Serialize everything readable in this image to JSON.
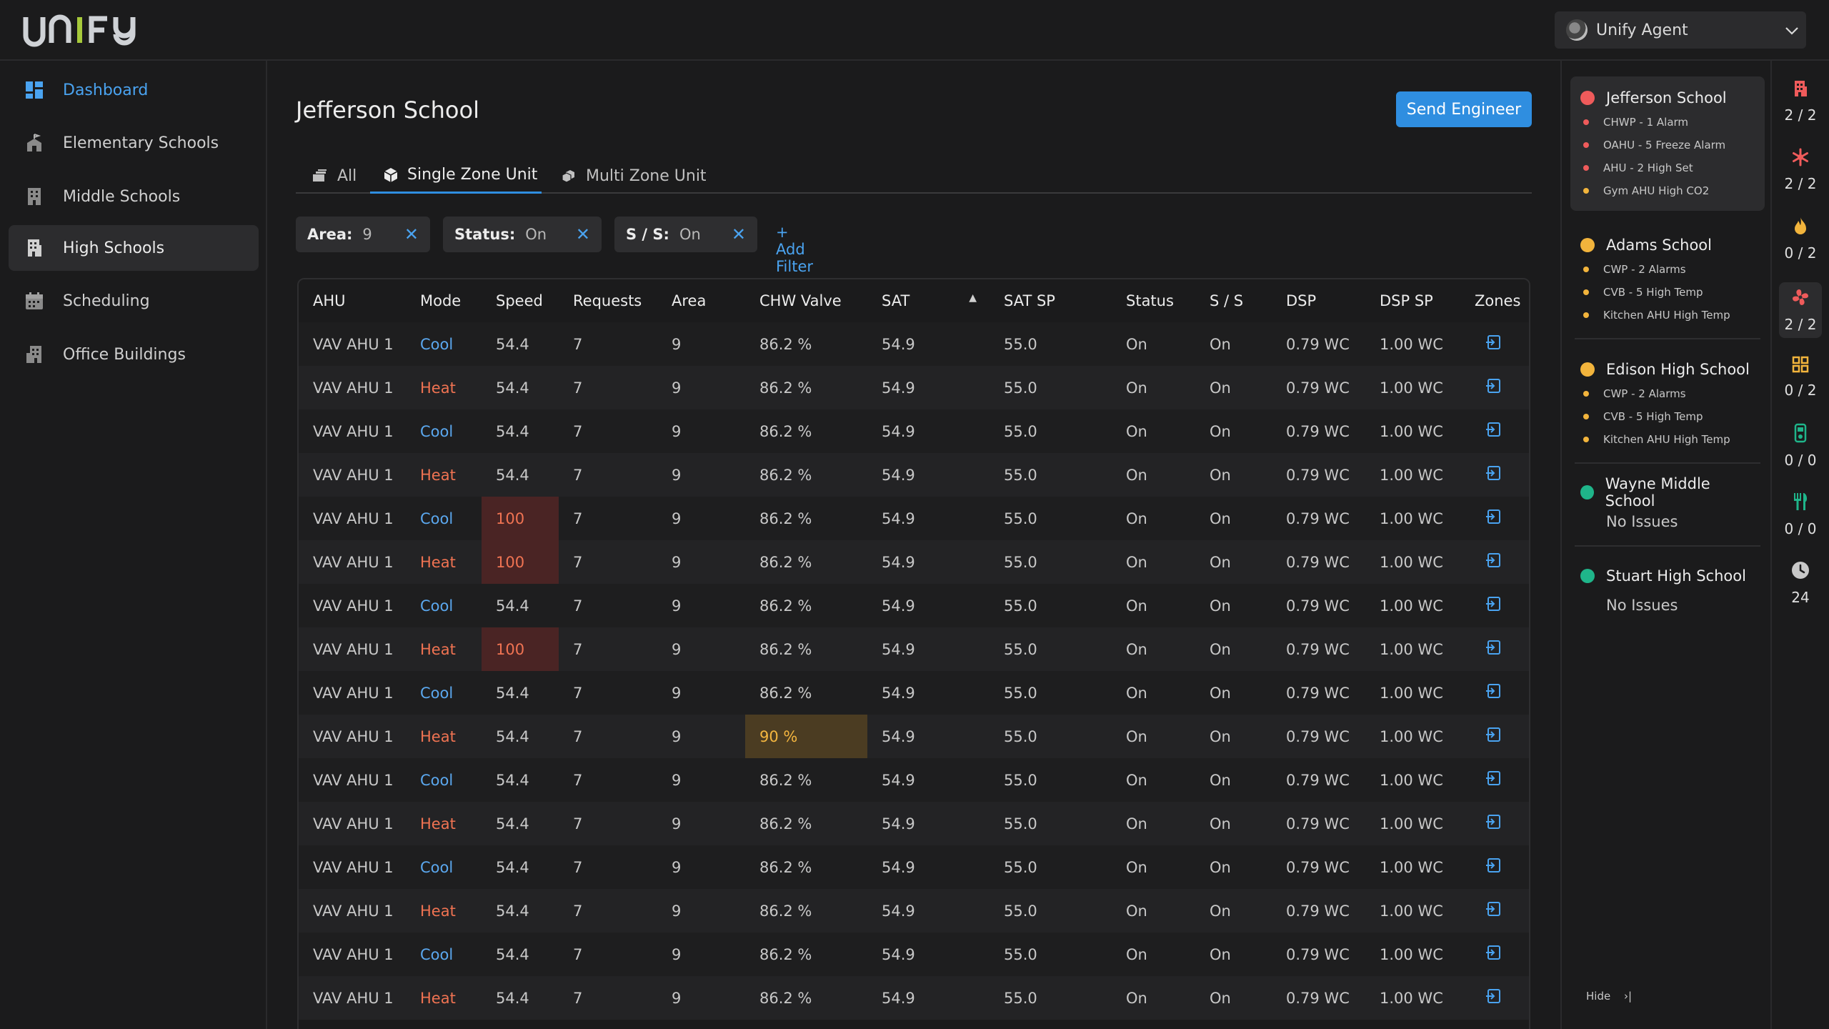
{
  "app": {
    "logo_text": "unify",
    "agent_name": "Unify Agent"
  },
  "sidebar": {
    "items": [
      {
        "label": "Dashboard",
        "icon": "dashboard-icon"
      },
      {
        "label": "Elementary Schools",
        "icon": "school-icon"
      },
      {
        "label": "Middle Schools",
        "icon": "building-icon"
      },
      {
        "label": "High Schools",
        "icon": "building-icon"
      },
      {
        "label": "Scheduling",
        "icon": "calendar-icon"
      },
      {
        "label": "Office Buildings",
        "icon": "office-icon"
      }
    ],
    "active": "High Schools"
  },
  "main": {
    "title": "Jefferson School",
    "send_button": "Send Engineer",
    "tabs": [
      {
        "label": "All"
      },
      {
        "label": "Single Zone Unit"
      },
      {
        "label": "Multi Zone Unit"
      }
    ],
    "active_tab": "Single Zone Unit",
    "filters": [
      {
        "key": "Area:",
        "value": "9"
      },
      {
        "key": "Status:",
        "value": "On"
      },
      {
        "key": "S / S:",
        "value": "On"
      }
    ],
    "add_filter": "+ Add Filter"
  },
  "table": {
    "headers": [
      "AHU",
      "Mode",
      "Speed",
      "Requests",
      "Area",
      "CHW Valve",
      "SAT",
      "SAT SP",
      "Status",
      "S / S",
      "DSP",
      "DSP SP",
      "Zones"
    ],
    "sorted_column": "SAT",
    "rows": [
      {
        "ahu": "VAV AHU 1",
        "mode": "Cool",
        "speed": "54.4",
        "requests": "7",
        "area": "9",
        "chw": "86.2 %",
        "sat": "54.9",
        "satsp": "55.0",
        "status": "On",
        "ss": "On",
        "dsp": "0.79 WC",
        "dspsp": "1.00 WC"
      },
      {
        "ahu": "VAV AHU 1",
        "mode": "Heat",
        "speed": "54.4",
        "requests": "7",
        "area": "9",
        "chw": "86.2 %",
        "sat": "54.9",
        "satsp": "55.0",
        "status": "On",
        "ss": "On",
        "dsp": "0.79 WC",
        "dspsp": "1.00 WC"
      },
      {
        "ahu": "VAV AHU 1",
        "mode": "Cool",
        "speed": "54.4",
        "requests": "7",
        "area": "9",
        "chw": "86.2 %",
        "sat": "54.9",
        "satsp": "55.0",
        "status": "On",
        "ss": "On",
        "dsp": "0.79 WC",
        "dspsp": "1.00 WC"
      },
      {
        "ahu": "VAV AHU 1",
        "mode": "Heat",
        "speed": "54.4",
        "requests": "7",
        "area": "9",
        "chw": "86.2 %",
        "sat": "54.9",
        "satsp": "55.0",
        "status": "On",
        "ss": "On",
        "dsp": "0.79 WC",
        "dspsp": "1.00 WC"
      },
      {
        "ahu": "VAV AHU 1",
        "mode": "Cool",
        "speed": "100",
        "speed_alert": true,
        "requests": "7",
        "area": "9",
        "chw": "86.2 %",
        "sat": "54.9",
        "satsp": "55.0",
        "status": "On",
        "ss": "On",
        "dsp": "0.79 WC",
        "dspsp": "1.00 WC"
      },
      {
        "ahu": "VAV AHU 1",
        "mode": "Heat",
        "speed": "100",
        "speed_alert": true,
        "requests": "7",
        "area": "9",
        "chw": "86.2 %",
        "sat": "54.9",
        "satsp": "55.0",
        "status": "On",
        "ss": "On",
        "dsp": "0.79 WC",
        "dspsp": "1.00 WC"
      },
      {
        "ahu": "VAV AHU 1",
        "mode": "Cool",
        "speed": "54.4",
        "requests": "7",
        "area": "9",
        "chw": "86.2 %",
        "sat": "54.9",
        "satsp": "55.0",
        "status": "On",
        "ss": "On",
        "dsp": "0.79 WC",
        "dspsp": "1.00 WC"
      },
      {
        "ahu": "VAV AHU 1",
        "mode": "Heat",
        "speed": "100",
        "speed_alert": true,
        "requests": "7",
        "area": "9",
        "chw": "86.2 %",
        "sat": "54.9",
        "satsp": "55.0",
        "status": "On",
        "ss": "On",
        "dsp": "0.79 WC",
        "dspsp": "1.00 WC"
      },
      {
        "ahu": "VAV AHU 1",
        "mode": "Cool",
        "speed": "54.4",
        "requests": "7",
        "area": "9",
        "chw": "86.2 %",
        "sat": "54.9",
        "satsp": "55.0",
        "status": "On",
        "ss": "On",
        "dsp": "0.79 WC",
        "dspsp": "1.00 WC"
      },
      {
        "ahu": "VAV AHU 1",
        "mode": "Heat",
        "speed": "54.4",
        "requests": "7",
        "area": "9",
        "chw": "90 %",
        "chw_warn": true,
        "sat": "54.9",
        "satsp": "55.0",
        "status": "On",
        "ss": "On",
        "dsp": "0.79 WC",
        "dspsp": "1.00 WC"
      },
      {
        "ahu": "VAV AHU 1",
        "mode": "Cool",
        "speed": "54.4",
        "requests": "7",
        "area": "9",
        "chw": "86.2 %",
        "sat": "54.9",
        "satsp": "55.0",
        "status": "On",
        "ss": "On",
        "dsp": "0.79 WC",
        "dspsp": "1.00 WC"
      },
      {
        "ahu": "VAV AHU 1",
        "mode": "Heat",
        "speed": "54.4",
        "requests": "7",
        "area": "9",
        "chw": "86.2 %",
        "sat": "54.9",
        "satsp": "55.0",
        "status": "On",
        "ss": "On",
        "dsp": "0.79 WC",
        "dspsp": "1.00 WC"
      },
      {
        "ahu": "VAV AHU 1",
        "mode": "Cool",
        "speed": "54.4",
        "requests": "7",
        "area": "9",
        "chw": "86.2 %",
        "sat": "54.9",
        "satsp": "55.0",
        "status": "On",
        "ss": "On",
        "dsp": "0.79 WC",
        "dspsp": "1.00 WC"
      },
      {
        "ahu": "VAV AHU 1",
        "mode": "Heat",
        "speed": "54.4",
        "requests": "7",
        "area": "9",
        "chw": "86.2 %",
        "sat": "54.9",
        "satsp": "55.0",
        "status": "On",
        "ss": "On",
        "dsp": "0.79 WC",
        "dspsp": "1.00 WC"
      },
      {
        "ahu": "VAV AHU 1",
        "mode": "Cool",
        "speed": "54.4",
        "requests": "7",
        "area": "9",
        "chw": "86.2 %",
        "sat": "54.9",
        "satsp": "55.0",
        "status": "On",
        "ss": "On",
        "dsp": "0.79 WC",
        "dspsp": "1.00 WC"
      },
      {
        "ahu": "VAV AHU 1",
        "mode": "Heat",
        "speed": "54.4",
        "requests": "7",
        "area": "9",
        "chw": "86.2 %",
        "sat": "54.9",
        "satsp": "55.0",
        "status": "On",
        "ss": "On",
        "dsp": "0.79 WC",
        "dspsp": "1.00 WC"
      }
    ]
  },
  "alerts": {
    "schools": [
      {
        "name": "Jefferson School",
        "status_color": "#ef5b5b",
        "items": [
          {
            "text": "CHWP - 1 Alarm",
            "color": "#ef5b5b"
          },
          {
            "text": "OAHU - 5 Freeze Alarm",
            "color": "#ef5b5b"
          },
          {
            "text": "AHU - 2 High Set",
            "color": "#ef5b5b"
          },
          {
            "text": "Gym AHU High CO2",
            "color": "#f2b43c"
          }
        ]
      },
      {
        "name": "Adams School",
        "status_color": "#f2b43c",
        "items": [
          {
            "text": "CWP - 2 Alarms",
            "color": "#f2b43c"
          },
          {
            "text": "CVB - 5 High Temp",
            "color": "#f2b43c"
          },
          {
            "text": "Kitchen AHU High Temp",
            "color": "#f2b43c"
          }
        ]
      },
      {
        "name": "Edison High School",
        "status_color": "#f2b43c",
        "items": [
          {
            "text": "CWP - 2 Alarms",
            "color": "#f2b43c"
          },
          {
            "text": "CVB - 5 High Temp",
            "color": "#f2b43c"
          },
          {
            "text": "Kitchen AHU High Temp",
            "color": "#f2b43c"
          }
        ]
      },
      {
        "name": "Wayne Middle School",
        "status_color": "#1fb58a",
        "note": "No Issues"
      },
      {
        "name": "Stuart High School",
        "status_color": "#1fb58a",
        "note": "No Issues"
      }
    ],
    "hide_label": "Hide"
  },
  "stats": [
    {
      "icon": "building-alert-icon",
      "value": "2 / 2",
      "color": "#ef5b5b"
    },
    {
      "icon": "snowflake-icon",
      "value": "2 / 2",
      "color": "#ef5b5b"
    },
    {
      "icon": "flame-icon",
      "value": "0 / 2",
      "color": "#f2b43c"
    },
    {
      "icon": "fan-icon",
      "value": "2 / 2",
      "color": "#ef5b5b"
    },
    {
      "icon": "grid-icon",
      "value": "0 / 2",
      "color": "#f2b43c"
    },
    {
      "icon": "meter-icon",
      "value": "0 / 0",
      "color": "#1fb58a"
    },
    {
      "icon": "utensils-icon",
      "value": "0 / 0",
      "color": "#1fb58a"
    },
    {
      "icon": "clock-icon",
      "value": "24",
      "color": "#c8c8c8"
    }
  ],
  "colors": {
    "accent": "#2f8ee0",
    "cool": "#5ba8ef",
    "heat": "#f07352",
    "alert_bg": "#4a2424",
    "warn_bg": "#4b3c22"
  }
}
